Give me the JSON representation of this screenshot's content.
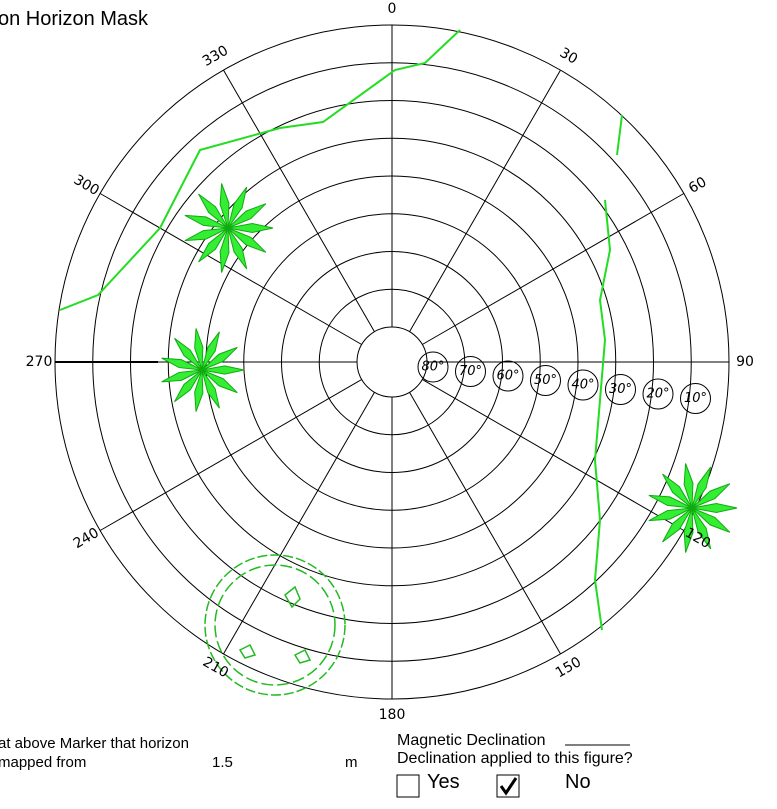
{
  "title": "on Horizon Mask",
  "azimuth_labels": [
    "0",
    "30",
    "60",
    "90",
    "120",
    "150",
    "180",
    "210",
    "240",
    "270",
    "300",
    "330"
  ],
  "elevation_labels": [
    "80°",
    "70°",
    "60°",
    "50°",
    "40°",
    "30°",
    "20°",
    "10°"
  ],
  "declination": {
    "label": "Magnetic Declination",
    "question": "Declination applied to this figure?",
    "yes": "Yes",
    "no": "No"
  },
  "footer": {
    "line1": "at above Marker that horizon",
    "line2": "mapped from",
    "height": "1.5",
    "unit": "m"
  }
}
